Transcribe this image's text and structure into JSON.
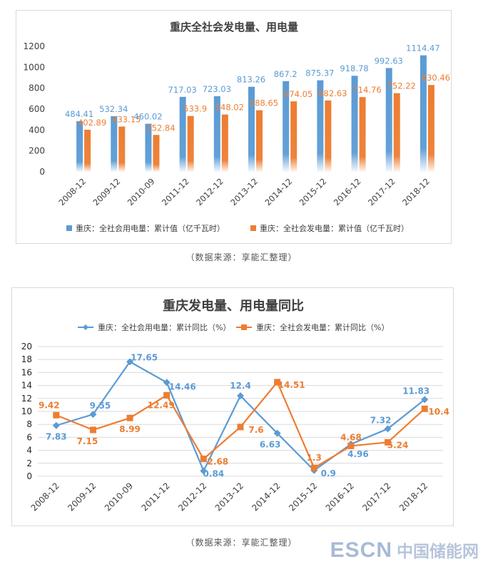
{
  "chart_data": [
    {
      "type": "bar",
      "title": "重庆全社会发电量、用电量",
      "categories": [
        "2008-12",
        "2009-12",
        "2010-09",
        "2011-12",
        "2012-12",
        "2013-12",
        "2014-12",
        "2015-12",
        "2016-12",
        "2017-12",
        "2018-12"
      ],
      "series": [
        {
          "name": "重庆：全社会用电量：累计值（亿千瓦时）",
          "color": "#5b9bd5",
          "values": [
            484.41,
            532.34,
            460.02,
            717.03,
            723.03,
            813.26,
            867.2,
            875.37,
            918.78,
            992.63,
            1114.47
          ],
          "labels": [
            "484.41",
            "532.34",
            "460.02",
            "717.03",
            "723.03",
            "813.26",
            "867.2",
            "875.37",
            "918.78",
            "992.63",
            "1114.47"
          ]
        },
        {
          "name": "重庆：全社会发电量：累计值（亿千瓦时）",
          "color": "#ed7d31",
          "values": [
            402.89,
            433.15,
            352.84,
            533.9,
            548.02,
            588.65,
            674.05,
            682.63,
            714.76,
            752.22,
            830.46
          ],
          "labels": [
            "402.89",
            "433.15",
            "352.84",
            "533.9",
            "548.02",
            "588.65",
            "674.05",
            "682.63",
            "714.76",
            "752.22",
            "830.46"
          ]
        }
      ],
      "yticks": [
        "0",
        "200",
        "400",
        "600",
        "800",
        "1000",
        "1200"
      ],
      "ylim": [
        0,
        1200
      ],
      "legend_position": "bottom"
    },
    {
      "type": "line",
      "title": "重庆发电量、用电量同比",
      "categories": [
        "2008-12",
        "2009-12",
        "2010-09",
        "2011-12",
        "2012-12",
        "2013-12",
        "2014-12",
        "2015-12",
        "2016-12",
        "2017-12",
        "2018-12"
      ],
      "series": [
        {
          "name": "重庆：全社会用电量：累计同比（%）",
          "color": "#5b9bd5",
          "marker": "diamond",
          "values": [
            7.83,
            9.55,
            17.65,
            14.46,
            0.84,
            12.4,
            6.63,
            0.9,
            4.96,
            7.32,
            11.83
          ],
          "labels": [
            "7.83",
            "9.55",
            "17.65",
            "14.46",
            "0.84",
            "12.4",
            "6.63",
            "0.9",
            "4.96",
            "7.32",
            "11.83"
          ]
        },
        {
          "name": "重庆：全社会发电量：累计同比（%）",
          "color": "#ed7d31",
          "marker": "square",
          "values": [
            9.42,
            7.15,
            8.99,
            12.49,
            2.68,
            7.6,
            14.51,
            1.3,
            4.68,
            5.24,
            10.4
          ],
          "labels": [
            "9.42",
            "7.15",
            "8.99",
            "12.49",
            "2.68",
            "7.6",
            "14.51",
            "1.3",
            "4.68",
            "5.24",
            "10.4"
          ]
        }
      ],
      "yticks": [
        "0",
        "2",
        "4",
        "6",
        "8",
        "10",
        "12",
        "14",
        "16",
        "18",
        "20"
      ],
      "ylim": [
        0,
        20
      ],
      "legend_position": "top"
    }
  ],
  "source_note": "（数据来源：享能汇整理）",
  "logo": {
    "en": "ESCN",
    "cn": "中国储能网"
  }
}
